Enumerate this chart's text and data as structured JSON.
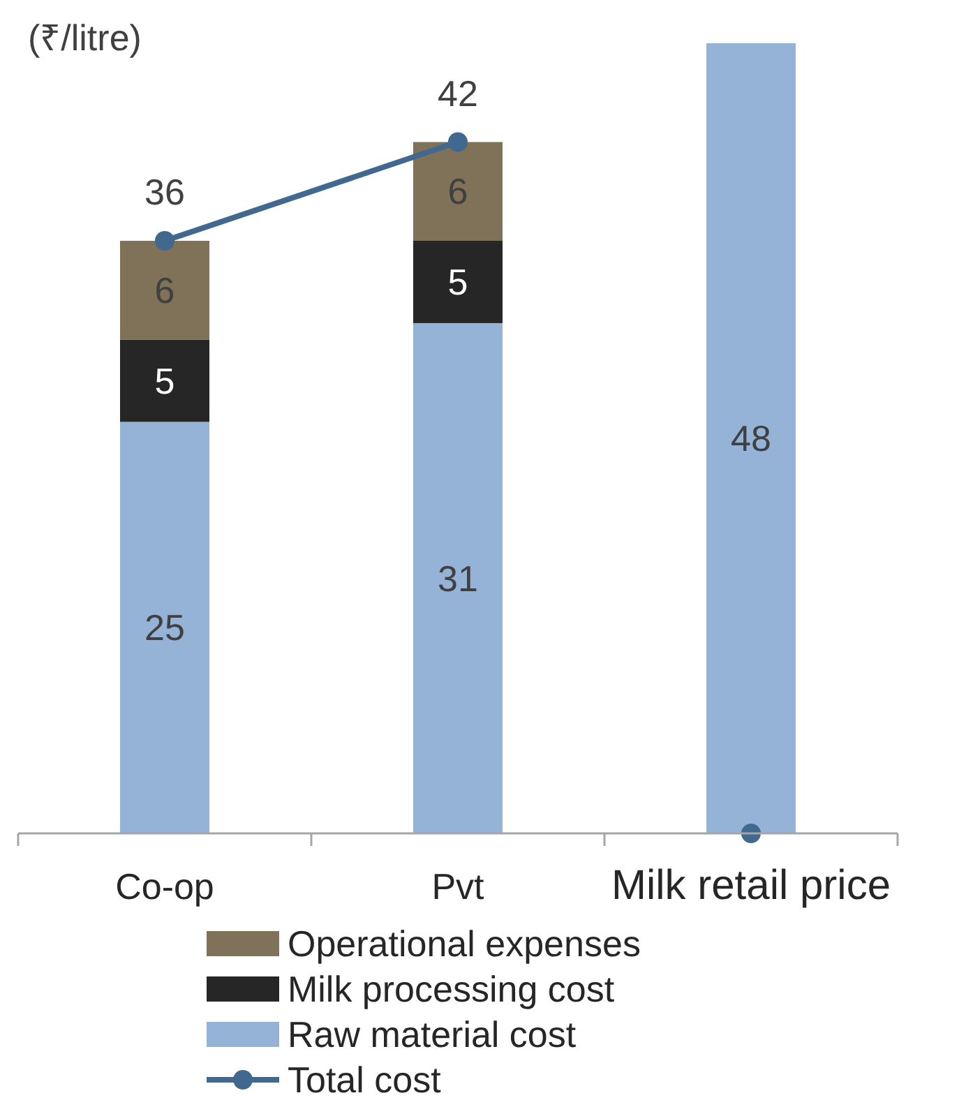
{
  "chart_data": {
    "type": "bar",
    "stacked": true,
    "ylabel": "(₹/litre)",
    "categories": [
      "Co-op",
      "Pvt",
      "Milk retail price"
    ],
    "legend": "bottom",
    "series": [
      {
        "name": "Raw material cost",
        "color": "#95b3d7",
        "values": [
          25,
          31,
          48
        ],
        "value_labels": [
          "25",
          "31",
          "48"
        ]
      },
      {
        "name": "Milk processing cost",
        "color": "#262626",
        "values": [
          5,
          5,
          null
        ],
        "value_labels": [
          "5",
          "5",
          null
        ]
      },
      {
        "name": "Operational expenses",
        "color": "#7f7259",
        "values": [
          6,
          6,
          null
        ],
        "value_labels": [
          "6",
          "6",
          null
        ]
      },
      {
        "name": "Total cost",
        "type": "line",
        "marker": "circle",
        "color": "#41698f",
        "values": [
          36,
          42,
          null
        ],
        "value_labels": [
          "36",
          "42",
          null
        ]
      },
      {
        "type": "scatter",
        "marker": "circle",
        "color": "#41698f",
        "values": [
          null,
          null,
          0
        ]
      }
    ]
  }
}
